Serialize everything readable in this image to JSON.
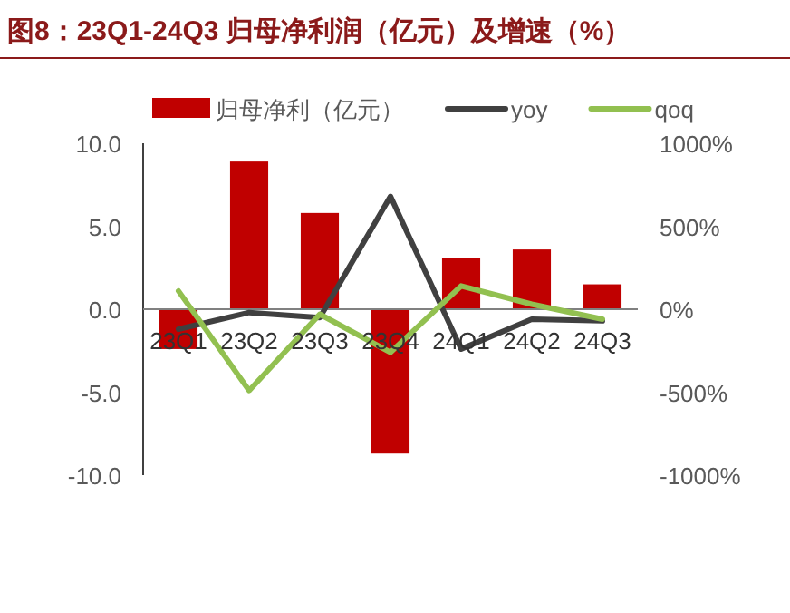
{
  "chart_data": {
    "type": "bar",
    "title": "图8：23Q1-24Q3 归母净利润（亿元）及增速（%）",
    "categories": [
      "23Q1",
      "23Q2",
      "23Q3",
      "23Q4",
      "24Q1",
      "24Q2",
      "24Q3"
    ],
    "series": [
      {
        "name": "归母净利（亿元）",
        "color": "#c00000",
        "values": [
          -2.4,
          8.9,
          5.8,
          -8.7,
          3.1,
          3.6,
          1.5
        ]
      },
      {
        "name": "yoy",
        "type": "line",
        "axis": "y2",
        "color": "#404040",
        "values": [
          -120,
          -20,
          -50,
          680,
          -240,
          -60,
          -70
        ]
      },
      {
        "name": "qoq",
        "type": "line",
        "axis": "y2",
        "color": "#92c050",
        "values": [
          110,
          -490,
          -30,
          -260,
          140,
          30,
          -60
        ]
      }
    ],
    "ylim": [
      -10,
      10
    ],
    "yticks": [
      {
        "value": -10,
        "label": "-10.0"
      },
      {
        "value": -5,
        "label": "-5.0"
      },
      {
        "value": 0,
        "label": "0.0"
      },
      {
        "value": 5,
        "label": "5.0"
      },
      {
        "value": 10,
        "label": "10.0"
      }
    ],
    "y2lim": [
      -1000,
      1000
    ],
    "y2ticks": [
      {
        "value": -1000,
        "label": "-1000%"
      },
      {
        "value": -500,
        "label": "-500%"
      },
      {
        "value": 0,
        "label": "0%"
      },
      {
        "value": 500,
        "label": "500%"
      },
      {
        "value": 1000,
        "label": "1000%"
      }
    ],
    "legend": "top",
    "grid": false
  }
}
